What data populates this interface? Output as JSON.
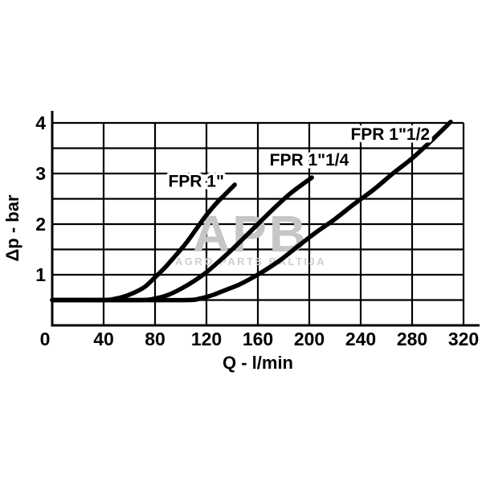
{
  "page": {
    "background": "#ffffff"
  },
  "watermark": {
    "line1": "APB",
    "line2": "AGRO PARTS BALTIJA",
    "logo_color": "#c6c6c6",
    "text_color": "#cfcfcf"
  },
  "chart_data": {
    "type": "line",
    "title": "",
    "xlabel": "Q - l/min",
    "ylabel": "Δp - bar",
    "xlim": [
      0,
      320
    ],
    "ylim": [
      0,
      4
    ],
    "x_ticks": [
      0,
      40,
      80,
      120,
      160,
      200,
      240,
      280,
      320
    ],
    "y_ticks": [
      1,
      2,
      3,
      4
    ],
    "x_grid_step": 40,
    "y_grid_step": 0.5,
    "grid": true,
    "legend_position": "inline-labels",
    "line_color": "#000000",
    "grid_color": "#000000",
    "series": [
      {
        "name": "FPR 1\"",
        "label_pos": {
          "x": 112,
          "y": 2.85
        },
        "points": [
          [
            0,
            0.5
          ],
          [
            20,
            0.5
          ],
          [
            40,
            0.5
          ],
          [
            48,
            0.52
          ],
          [
            56,
            0.57
          ],
          [
            64,
            0.65
          ],
          [
            72,
            0.76
          ],
          [
            80,
            0.95
          ],
          [
            88,
            1.15
          ],
          [
            96,
            1.38
          ],
          [
            104,
            1.62
          ],
          [
            112,
            1.9
          ],
          [
            120,
            2.18
          ],
          [
            128,
            2.42
          ],
          [
            135,
            2.6
          ],
          [
            142,
            2.78
          ]
        ]
      },
      {
        "name": "FPR 1\"1/4",
        "label_pos": {
          "x": 200,
          "y": 3.27
        },
        "points": [
          [
            0,
            0.5
          ],
          [
            40,
            0.5
          ],
          [
            70,
            0.5
          ],
          [
            80,
            0.53
          ],
          [
            90,
            0.6
          ],
          [
            100,
            0.72
          ],
          [
            110,
            0.87
          ],
          [
            120,
            1.05
          ],
          [
            130,
            1.27
          ],
          [
            140,
            1.5
          ],
          [
            150,
            1.75
          ],
          [
            160,
            2.0
          ],
          [
            172,
            2.3
          ],
          [
            186,
            2.62
          ],
          [
            202,
            2.92
          ]
        ]
      },
      {
        "name": "FPR 1\"1/2",
        "label_pos": {
          "x": 263,
          "y": 3.78
        },
        "points": [
          [
            0,
            0.5
          ],
          [
            60,
            0.5
          ],
          [
            105,
            0.5
          ],
          [
            115,
            0.53
          ],
          [
            125,
            0.6
          ],
          [
            135,
            0.7
          ],
          [
            145,
            0.8
          ],
          [
            155,
            0.93
          ],
          [
            165,
            1.08
          ],
          [
            178,
            1.3
          ],
          [
            192,
            1.58
          ],
          [
            206,
            1.85
          ],
          [
            220,
            2.1
          ],
          [
            235,
            2.4
          ],
          [
            250,
            2.68
          ],
          [
            265,
            3.0
          ],
          [
            280,
            3.3
          ],
          [
            295,
            3.65
          ],
          [
            310,
            4.02
          ]
        ]
      }
    ]
  }
}
